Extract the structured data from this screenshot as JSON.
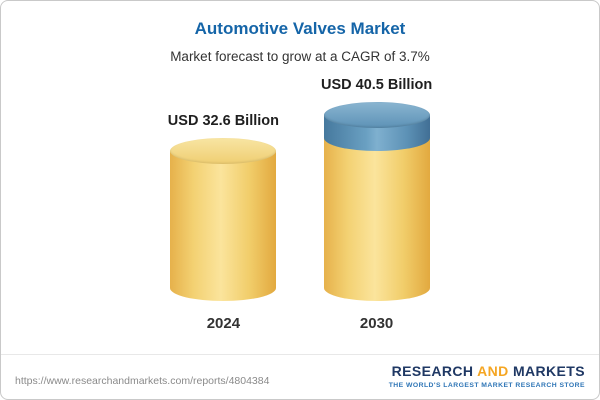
{
  "header": {
    "title": "Automotive Valves Market",
    "subtitle": "Market forecast to grow at a CAGR of 3.7%"
  },
  "chart_data": {
    "type": "bar",
    "title": "Automotive Valves Market",
    "subtitle": "Market forecast to grow at a CAGR of 3.7%",
    "cagr_percent": 3.7,
    "unit": "USD Billion",
    "categories": [
      "2024",
      "2030"
    ],
    "values": [
      32.6,
      40.5
    ],
    "value_labels": [
      "USD 32.6 Billion",
      "USD 40.5 Billion"
    ],
    "ylim": [
      0,
      40.5
    ],
    "legend": "none",
    "grid": false,
    "colors": {
      "base_segment": "#F2CE68",
      "growth_segment": "#5890B5",
      "title_text": "#1565A8"
    }
  },
  "footer": {
    "url": "https://www.researchandmarkets.com/reports/4804384",
    "logo": {
      "word1": "RESEARCH",
      "word2": "AND",
      "word3": "MARKETS",
      "tagline": "THE WORLD'S LARGEST MARKET RESEARCH STORE"
    }
  }
}
